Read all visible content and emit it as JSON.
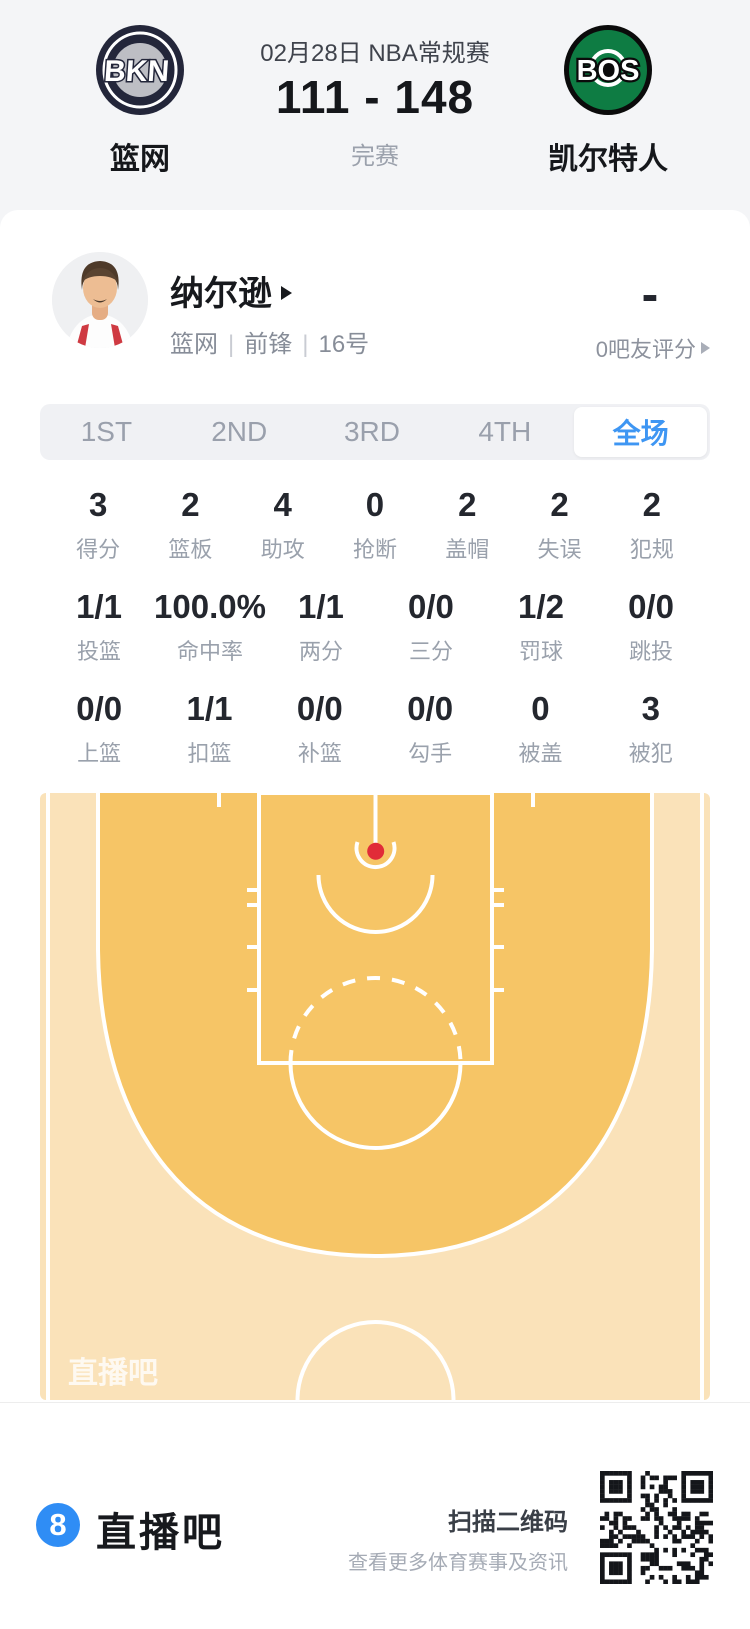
{
  "header": {
    "date_title": "02月28日 NBA常规赛",
    "score": "111 - 148",
    "status": "完赛",
    "home": {
      "abbr": "BKN",
      "name": "篮网"
    },
    "away": {
      "abbr": "BOS",
      "name": "凯尔特人"
    }
  },
  "player": {
    "name": "纳尔逊",
    "meta": {
      "team": "篮网",
      "position": "前锋",
      "number": "16号"
    },
    "rating_value": "-",
    "rating_label": "0吧友评分"
  },
  "tabs": [
    {
      "label": "1ST",
      "selected": false
    },
    {
      "label": "2ND",
      "selected": false
    },
    {
      "label": "3RD",
      "selected": false
    },
    {
      "label": "4TH",
      "selected": false
    },
    {
      "label": "全场",
      "selected": true
    }
  ],
  "stats": {
    "rows": [
      {
        "items": [
          {
            "value": "3",
            "label": "得分"
          },
          {
            "value": "2",
            "label": "篮板"
          },
          {
            "value": "4",
            "label": "助攻"
          },
          {
            "value": "0",
            "label": "抢断"
          },
          {
            "value": "2",
            "label": "盖帽"
          },
          {
            "value": "2",
            "label": "失误"
          },
          {
            "value": "2",
            "label": "犯规"
          }
        ]
      },
      {
        "items": [
          {
            "value": "1/1",
            "label": "投篮"
          },
          {
            "value": "100.0%",
            "label": "命中率"
          },
          {
            "value": "1/1",
            "label": "两分"
          },
          {
            "value": "0/0",
            "label": "三分"
          },
          {
            "value": "1/2",
            "label": "罚球"
          },
          {
            "value": "0/0",
            "label": "跳投"
          }
        ]
      },
      {
        "items": [
          {
            "value": "0/0",
            "label": "上篮"
          },
          {
            "value": "1/1",
            "label": "扣篮"
          },
          {
            "value": "0/0",
            "label": "补篮"
          },
          {
            "value": "0/0",
            "label": "勾手"
          },
          {
            "value": "0",
            "label": "被盖"
          },
          {
            "value": "3",
            "label": "被犯"
          }
        ]
      }
    ]
  },
  "court": {
    "watermark": "直播吧",
    "colors": {
      "inner": "#f6c566",
      "outer": "#fae2b9",
      "line": "#ffffff",
      "marker": "#e12b38"
    },
    "shot_markers": [
      {
        "x": 0.501,
        "y": 0.096
      }
    ]
  },
  "footer": {
    "brand_badge": "8",
    "brand_text": "直播吧",
    "scan_title": "扫描二维码",
    "scan_subtitle": "查看更多体育赛事及资讯"
  },
  "accent_colors": {
    "tab_blue": "#3e96f3",
    "brand_blue": "#2f8df5",
    "bkn_dark": "#23263a",
    "bos_green": "#0e7c43"
  }
}
